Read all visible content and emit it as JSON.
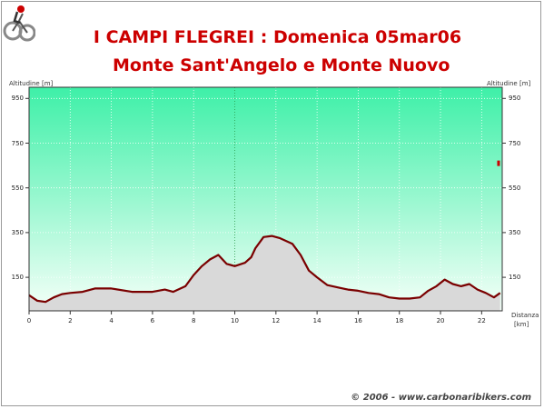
{
  "header": {
    "title_line1": "I CAMPI FLEGREI : Domenica 05mar06",
    "title_line2": "Monte Sant'Angelo e Monte Nuovo"
  },
  "footer": {
    "copyright": "© 2006 - www.carbonaribikers.com"
  },
  "colors": {
    "title": "#cc0000",
    "profile_line": "#7a0000",
    "profile_fill": "#d9d9d9",
    "sky_top": "#3ef0a8",
    "sky_bottom": "#f4fff8",
    "marker": "#cc0000"
  },
  "chart_data": {
    "type": "area",
    "ylabel_left": "Altitudine [m]",
    "ylabel_right": "Altitudine [m]",
    "xlabel_line1": "Distanza",
    "xlabel_line2": "[km]",
    "xlim": [
      0,
      23
    ],
    "ylim": [
      0,
      1000
    ],
    "y_ticks": [
      150,
      350,
      550,
      750,
      950
    ],
    "x_ticks": [
      0,
      2,
      4,
      6,
      8,
      10,
      12,
      14,
      16,
      18,
      20,
      22
    ],
    "highlight_x": 10,
    "grid": true,
    "series": [
      {
        "x": [
          0,
          0.4,
          0.8,
          1.2,
          1.6,
          2,
          2.6,
          3.2,
          4,
          5,
          6,
          6.6,
          7,
          7.6,
          8,
          8.4,
          8.8,
          9.2,
          9.6,
          10,
          10.5,
          10.8,
          11,
          11.4,
          11.8,
          12.2,
          12.8,
          13.2,
          13.6,
          14,
          14.5,
          15,
          15.5,
          16,
          16.5,
          17,
          17.5,
          18,
          18.5,
          19,
          19.4,
          19.8,
          20.2,
          20.6,
          21,
          21.4,
          21.8,
          22.2,
          22.6,
          22.9
        ],
        "y": [
          70,
          45,
          40,
          60,
          75,
          80,
          85,
          100,
          100,
          85,
          85,
          95,
          85,
          110,
          160,
          200,
          230,
          250,
          210,
          200,
          215,
          240,
          280,
          330,
          335,
          325,
          300,
          250,
          180,
          150,
          115,
          105,
          95,
          90,
          80,
          75,
          60,
          55,
          55,
          60,
          90,
          110,
          140,
          120,
          110,
          120,
          95,
          80,
          60,
          80
        ]
      }
    ],
    "marker": {
      "x": 22.8,
      "y": 660
    }
  }
}
